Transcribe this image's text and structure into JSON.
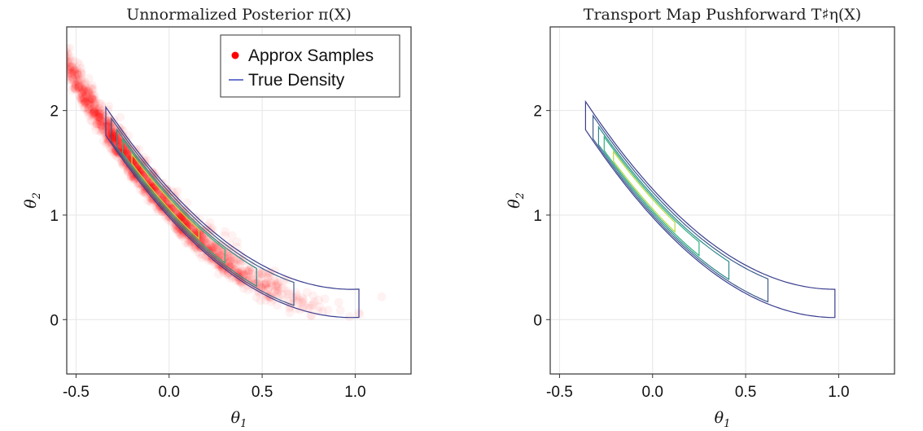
{
  "chart_data": [
    {
      "type": "scatter",
      "title": "Unnormalized Posterior π(X)",
      "xlabel": "θ1",
      "ylabel": "θ2",
      "xlim": [
        -0.55,
        1.3
      ],
      "ylim": [
        -0.52,
        2.8
      ],
      "xticks": [
        "-0.5",
        "0.0",
        "0.5",
        "1.0"
      ],
      "yticks": [
        "0",
        "1",
        "2"
      ],
      "grid": true,
      "legend_position": "top-right",
      "legend": [
        {
          "label": "Approx Samples",
          "color": "#ff0000",
          "marker": "circle"
        },
        {
          "label": "True Density",
          "color": "#3b4cc0",
          "marker": "line"
        }
      ],
      "scatter_series": {
        "name": "Approx Samples",
        "color": "#ff0000",
        "opacity": 0.05,
        "n_points": 2000,
        "curve_family": "banana y = (x - a)^2 + offset",
        "parameter_a": 0.98,
        "offset_min": -0.02,
        "offset_max": 0.35
      },
      "contour_series": {
        "name": "True Density",
        "levels": [
          {
            "color": "#3b3f8f",
            "t_min": -0.34,
            "t_max": 1.02,
            "offset_outer": 0.02,
            "offset_inner": 0.29
          },
          {
            "color": "#3d5c8c",
            "t_min": -0.31,
            "t_max": 0.67,
            "offset_outer": 0.04,
            "offset_inner": 0.26
          },
          {
            "color": "#2f8a8c",
            "t_min": -0.28,
            "t_max": 0.47,
            "offset_outer": 0.06,
            "offset_inner": 0.23
          },
          {
            "color": "#2fb07f",
            "t_min": -0.25,
            "t_max": 0.3,
            "offset_outer": 0.08,
            "offset_inner": 0.21
          },
          {
            "color": "#b7d840",
            "t_min": -0.2,
            "t_max": 0.16,
            "offset_outer": 0.1,
            "offset_inner": 0.19
          }
        ]
      }
    },
    {
      "type": "contour",
      "title": "Transport Map Pushforward T♯η(X)",
      "xlabel": "θ1",
      "ylabel": "θ2",
      "xlim": [
        -0.55,
        1.3
      ],
      "ylim": [
        -0.52,
        2.8
      ],
      "xticks": [
        "-0.5",
        "0.0",
        "0.5",
        "1.0"
      ],
      "yticks": [
        "0",
        "1",
        "2"
      ],
      "grid": true,
      "levels": [
        {
          "color": "#3b3f8f",
          "t_min": -0.36,
          "t_max": 0.98,
          "offset_outer": 0.02,
          "offset_inner": 0.29
        },
        {
          "color": "#3d5c8c",
          "t_min": -0.32,
          "t_max": 0.62,
          "offset_outer": 0.04,
          "offset_inner": 0.26
        },
        {
          "color": "#2f8a8c",
          "t_min": -0.29,
          "t_max": 0.41,
          "offset_outer": 0.06,
          "offset_inner": 0.23
        },
        {
          "color": "#2fb07f",
          "t_min": -0.26,
          "t_max": 0.25,
          "offset_outer": 0.08,
          "offset_inner": 0.21
        },
        {
          "color": "#b7d840",
          "t_min": -0.21,
          "t_max": 0.12,
          "offset_outer": 0.1,
          "offset_inner": 0.19
        }
      ]
    }
  ]
}
